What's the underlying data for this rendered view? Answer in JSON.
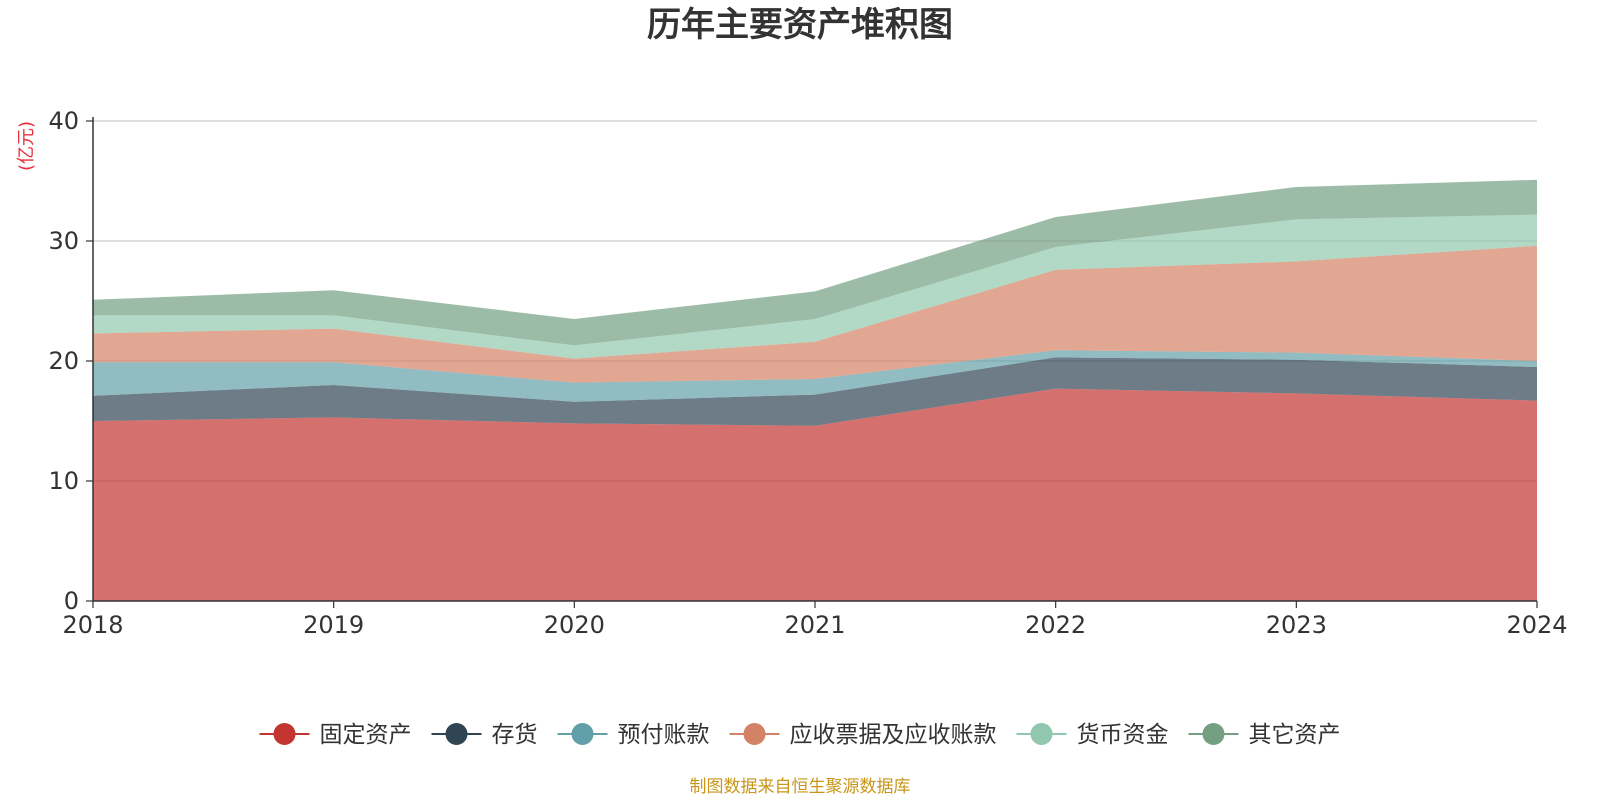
{
  "chart_data": {
    "type": "area",
    "stacked": true,
    "title": "历年主要资产堆积图",
    "unit_label": "(亿元)",
    "x": [
      "2018",
      "2019",
      "2020",
      "2021",
      "2022",
      "2023",
      "2024"
    ],
    "ylim": [
      0,
      40
    ],
    "yticks": [
      "0",
      "10",
      "20",
      "30",
      "40"
    ],
    "grid": true,
    "legend_position": "bottom",
    "series": [
      {
        "name": "固定资产",
        "color": "#c23531",
        "values": [
          15.0,
          15.3,
          14.8,
          14.6,
          17.7,
          17.3,
          16.7
        ]
      },
      {
        "name": "存货",
        "color": "#2f4554",
        "values": [
          2.1,
          2.7,
          1.8,
          2.6,
          2.6,
          2.8,
          2.8
        ]
      },
      {
        "name": "预付账款",
        "color": "#61a0a8",
        "values": [
          2.8,
          1.9,
          1.6,
          1.3,
          0.6,
          0.6,
          0.5
        ]
      },
      {
        "name": "应收票据及应收账款",
        "color": "#d48265",
        "values": [
          2.4,
          2.8,
          2.0,
          3.1,
          6.7,
          7.6,
          9.6
        ]
      },
      {
        "name": "货币资金",
        "color": "#91c7ae",
        "values": [
          1.5,
          1.1,
          1.1,
          1.9,
          1.9,
          3.5,
          2.6
        ]
      },
      {
        "name": "其它资产",
        "color": "#749f83",
        "values": [
          1.3,
          2.1,
          2.2,
          2.3,
          2.5,
          2.7,
          2.9
        ]
      }
    ]
  },
  "source_note": "制图数据来自恒生聚源数据库"
}
